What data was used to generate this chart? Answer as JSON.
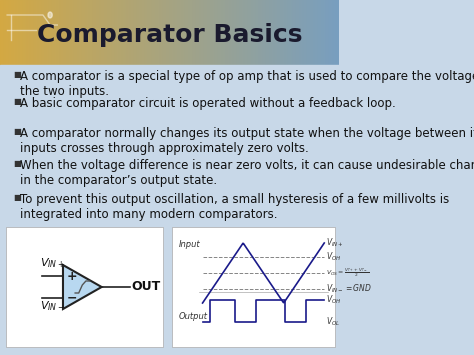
{
  "title": "Comparator Basics",
  "title_color": "#1a1a2e",
  "title_fontsize": 18,
  "bg_top_left": "#d4a843",
  "bg_top_right": "#7a9ec0",
  "bg_bottom": "#c8d8e8",
  "bullet_points": [
    "A comparator is a special type of op amp that is used to compare the voltages of\nthe two inputs.",
    "A basic comparator circuit is operated without a feedback loop.",
    "A comparator normally changes its output state when the voltage between its\ninputs crosses through approximately zero volts.",
    "When the voltage difference is near zero volts, it can cause undesirable changes\nin the comparator’s output state.",
    "To prevent this output oscillation, a small hysteresis of a few millivolts is\nintegrated into many modern comparators."
  ],
  "bullet_color": "#111111",
  "bullet_fontsize": 8.5,
  "text_color": "#111111",
  "diagram_box_color": "#f5f5f5",
  "diagram_box_edge": "#888888",
  "triangle_fill": "#b8d8f0",
  "triangle_edge": "#222222",
  "op_amp_symbol_color": "#444444",
  "out_label": "OUT",
  "vin_plus": "V",
  "vin_minus": "V",
  "vin_plus_sub": "IN+",
  "vin_minus_sub": "IN-"
}
